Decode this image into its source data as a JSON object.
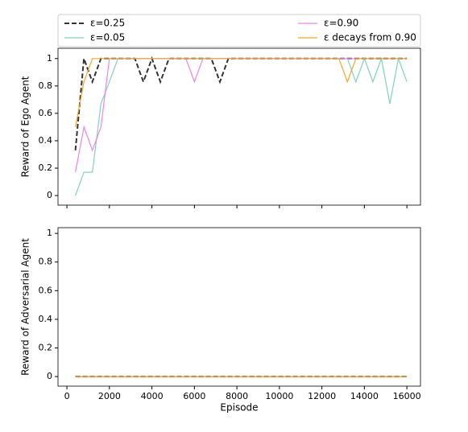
{
  "chart_data": [
    {
      "type": "line",
      "ylabel": "Reward of Ego Agent",
      "legend": "above",
      "x": [
        400,
        800,
        1200,
        1600,
        2000,
        2400,
        2800,
        3200,
        3600,
        4000,
        4400,
        4800,
        5200,
        5600,
        6000,
        6400,
        6800,
        7200,
        7600,
        8000,
        8400,
        8800,
        9200,
        9600,
        10000,
        10400,
        10800,
        11200,
        11600,
        12000,
        12400,
        12800,
        13200,
        13600,
        14000,
        14400,
        14800,
        15200,
        15600,
        16000
      ],
      "xlim": [
        -420,
        16640
      ],
      "xticks": [
        0,
        2000,
        4000,
        6000,
        8000,
        10000,
        12000,
        14000,
        16000
      ],
      "ylim": [
        -0.07,
        1.075
      ],
      "yticks": [
        0.0,
        0.2,
        0.4,
        0.6,
        0.8,
        1.0
      ],
      "series": [
        {
          "name": "ε=0.25",
          "color": "#333333",
          "style": "dashed",
          "values": [
            0.33,
            1.0,
            0.83,
            1.0,
            1.0,
            1.0,
            1.0,
            1.0,
            0.83,
            1.0,
            0.83,
            1.0,
            1.0,
            1.0,
            1.0,
            1.0,
            1.0,
            0.83,
            1.0,
            1.0,
            1.0,
            1.0,
            1.0,
            1.0,
            1.0,
            1.0,
            1.0,
            1.0,
            1.0,
            1.0,
            1.0,
            1.0,
            1.0,
            1.0,
            1.0,
            1.0,
            1.0,
            1.0,
            1.0,
            1.0
          ]
        },
        {
          "name": "ε=0.05",
          "color": "#7fd3bb",
          "style": "solid",
          "values": [
            0.0,
            0.17,
            0.17,
            0.67,
            0.83,
            1.0,
            1.0,
            1.0,
            1.0,
            1.0,
            1.0,
            1.0,
            1.0,
            1.0,
            1.0,
            1.0,
            1.0,
            1.0,
            1.0,
            1.0,
            1.0,
            1.0,
            1.0,
            1.0,
            1.0,
            1.0,
            1.0,
            1.0,
            1.0,
            1.0,
            1.0,
            1.0,
            1.0,
            0.83,
            1.0,
            0.83,
            1.0,
            0.67,
            1.0,
            0.83
          ]
        },
        {
          "name": "ε=0.90",
          "color": "#ee82ee",
          "style": "solid",
          "values": [
            0.17,
            0.5,
            0.33,
            0.5,
            1.0,
            1.0,
            1.0,
            1.0,
            1.0,
            1.0,
            1.0,
            1.0,
            1.0,
            1.0,
            0.83,
            1.0,
            1.0,
            1.0,
            1.0,
            1.0,
            1.0,
            1.0,
            1.0,
            1.0,
            1.0,
            1.0,
            1.0,
            1.0,
            1.0,
            1.0,
            1.0,
            1.0,
            1.0,
            1.0,
            1.0,
            1.0,
            1.0,
            1.0,
            1.0,
            1.0
          ]
        },
        {
          "name": "ε decays from 0.90",
          "color": "#f5a623",
          "style": "solid",
          "values": [
            0.5,
            0.83,
            1.0,
            1.0,
            1.0,
            1.0,
            1.0,
            1.0,
            1.0,
            1.0,
            1.0,
            1.0,
            1.0,
            1.0,
            1.0,
            1.0,
            1.0,
            1.0,
            1.0,
            1.0,
            1.0,
            1.0,
            1.0,
            1.0,
            1.0,
            1.0,
            1.0,
            1.0,
            1.0,
            1.0,
            1.0,
            1.0,
            0.83,
            1.0,
            1.0,
            1.0,
            1.0,
            1.0,
            1.0,
            1.0
          ]
        }
      ]
    },
    {
      "type": "line",
      "ylabel": "Reward of Adversarial Agent",
      "xlabel": "Episode",
      "x": [
        400,
        800,
        1200,
        1600,
        2000,
        2400,
        2800,
        3200,
        3600,
        4000,
        4400,
        4800,
        5200,
        5600,
        6000,
        6400,
        6800,
        7200,
        7600,
        8000,
        8400,
        8800,
        9200,
        9600,
        10000,
        10400,
        10800,
        11200,
        11600,
        12000,
        12400,
        12800,
        13200,
        13600,
        14000,
        14400,
        14800,
        15200,
        15600,
        16000
      ],
      "xlim": [
        -420,
        16640
      ],
      "xticks": [
        0,
        2000,
        4000,
        6000,
        8000,
        10000,
        12000,
        14000,
        16000
      ],
      "ylim": [
        -0.067,
        1.04
      ],
      "yticks": [
        0.0,
        0.2,
        0.4,
        0.6,
        0.8,
        1.0
      ],
      "series": [
        {
          "color": "#333333",
          "style": "dashed",
          "values": [
            0,
            0,
            0,
            0,
            0,
            0,
            0,
            0,
            0,
            0,
            0,
            0,
            0,
            0,
            0,
            0,
            0,
            0,
            0,
            0,
            0,
            0,
            0,
            0,
            0,
            0,
            0,
            0,
            0,
            0,
            0,
            0,
            0,
            0,
            0,
            0,
            0,
            0,
            0,
            0
          ]
        },
        {
          "color": "#7fd3bb",
          "style": "solid",
          "values": [
            0,
            0,
            0,
            0,
            0,
            0,
            0,
            0,
            0,
            0,
            0,
            0,
            0,
            0,
            0,
            0,
            0,
            0,
            0,
            0,
            0,
            0,
            0,
            0,
            0,
            0,
            0,
            0,
            0,
            0,
            0,
            0,
            0,
            0,
            0,
            0,
            0,
            0,
            0,
            0
          ]
        },
        {
          "color": "#ee82ee",
          "style": "solid",
          "values": [
            0,
            0,
            0,
            0,
            0,
            0,
            0,
            0,
            0,
            0,
            0,
            0,
            0,
            0,
            0,
            0,
            0,
            0,
            0,
            0,
            0,
            0,
            0,
            0,
            0,
            0,
            0,
            0,
            0,
            0,
            0,
            0,
            0,
            0,
            0,
            0,
            0,
            0,
            0,
            0
          ]
        },
        {
          "color": "#f5a623",
          "style": "solid",
          "values": [
            0,
            0,
            0,
            0,
            0,
            0,
            0,
            0,
            0,
            0,
            0,
            0,
            0,
            0,
            0,
            0,
            0,
            0,
            0,
            0,
            0,
            0,
            0,
            0,
            0,
            0,
            0,
            0,
            0,
            0,
            0,
            0,
            0,
            0,
            0,
            0,
            0,
            0,
            0,
            0
          ]
        }
      ]
    }
  ]
}
